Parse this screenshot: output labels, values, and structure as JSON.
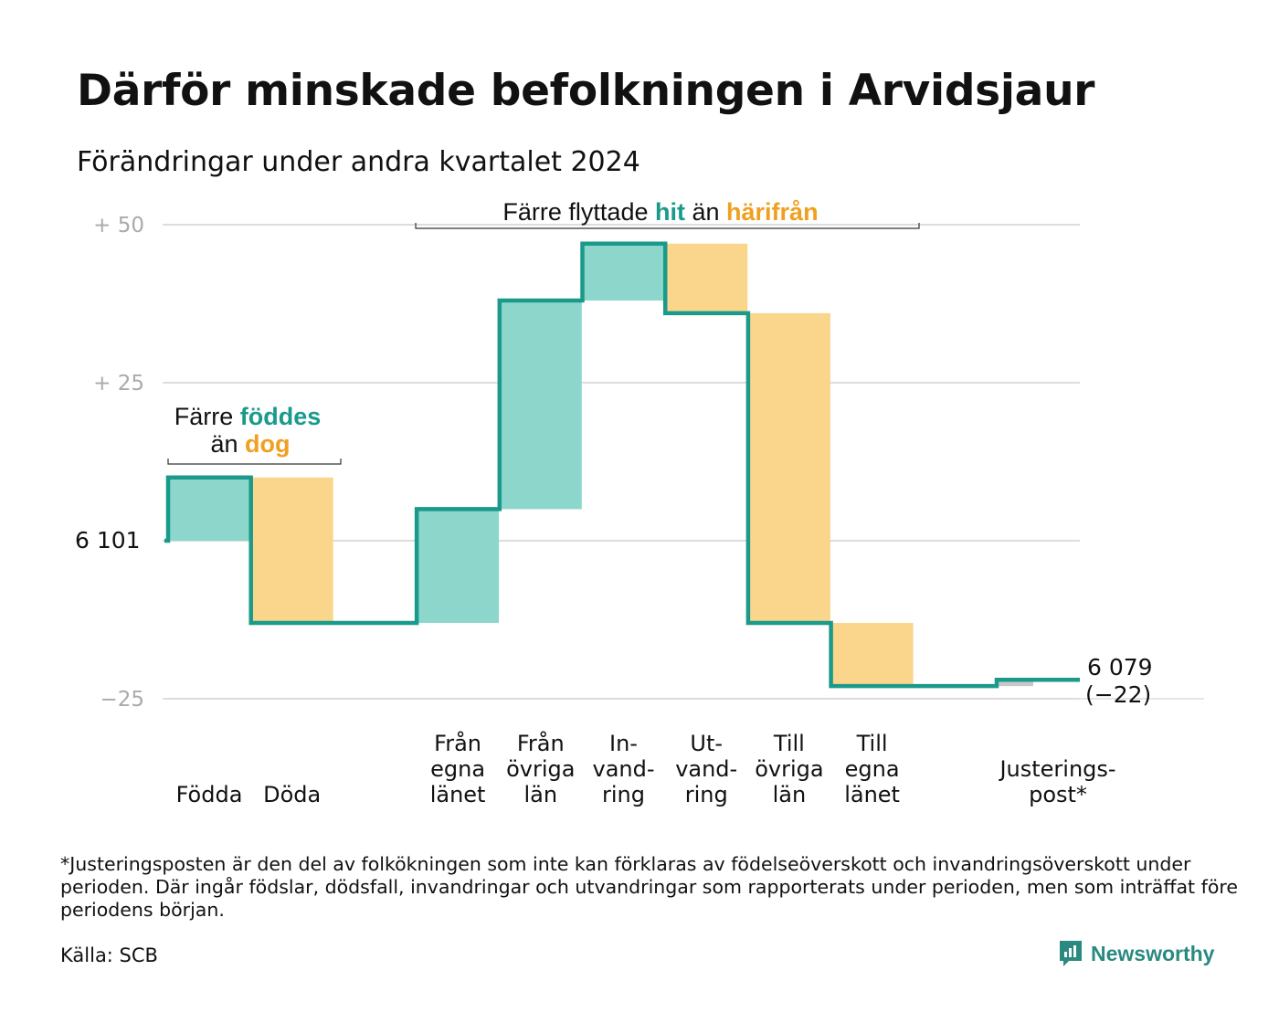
{
  "title": "Därför minskade befolkningen i Arvidsjaur",
  "subtitle": "Förändringar under andra kvartalet 2024",
  "colors": {
    "inflow_fill": "#8dd6cc",
    "outflow_fill": "#fad58c",
    "line": "#1a9a8a",
    "adjust_fill": "#c8c8c8",
    "grid": "#dddddd",
    "hit_text": "#1a9a8a",
    "away_text": "#f0a020"
  },
  "annotations": {
    "births": {
      "line1_a": "Färre ",
      "line1_b": "föddes",
      "line2_a": "än ",
      "line2_b": "dog"
    },
    "moves": {
      "a": "Färre flyttade ",
      "b": "hit",
      "c": " än ",
      "d": "härifrån"
    }
  },
  "chart_data": {
    "type": "waterfall",
    "title": "Därför minskade befolkningen i Arvidsjaur",
    "subtitle": "Förändringar under andra kvartalet 2024",
    "start_value": 6101,
    "start_label": "6  101",
    "end_label": "6 079",
    "end_change_label": "(−22)",
    "y_ticks": [
      {
        "value": 50,
        "label": "+  50"
      },
      {
        "value": 25,
        "label": "+  25"
      },
      {
        "value": 0,
        "label": ""
      },
      {
        "value": -25,
        "label": "−25"
      }
    ],
    "ylim": [
      -25,
      50
    ],
    "steps": [
      {
        "label": [
          "",
          "",
          "Födda"
        ],
        "value": 10,
        "kind": "in"
      },
      {
        "label": [
          "",
          "",
          "Döda"
        ],
        "value": -23,
        "kind": "out"
      },
      {
        "label": [
          "",
          "",
          ""
        ],
        "value": 0,
        "kind": "gap"
      },
      {
        "label": [
          "Från",
          "egna",
          "länet"
        ],
        "value": 18,
        "kind": "in"
      },
      {
        "label": [
          "Från",
          "övriga",
          "län"
        ],
        "value": 33,
        "kind": "in"
      },
      {
        "label": [
          "In-",
          "vand-",
          "ring"
        ],
        "value": 9,
        "kind": "in"
      },
      {
        "label": [
          "Ut-",
          "vand-",
          "ring"
        ],
        "value": -11,
        "kind": "out"
      },
      {
        "label": [
          "Till",
          "övriga",
          "län"
        ],
        "value": -49,
        "kind": "out"
      },
      {
        "label": [
          "Till",
          "egna",
          "länet"
        ],
        "value": -10,
        "kind": "out"
      },
      {
        "label": [
          "",
          "",
          ""
        ],
        "value": 0,
        "kind": "gap"
      },
      {
        "label": [
          "",
          "Justerings-",
          "post*"
        ],
        "value": 1,
        "kind": "adjust"
      }
    ]
  },
  "footnote": "*Justeringsposten är den del av folkökningen som inte kan förklaras av födelseöverskott och invandringsöverskott under perioden. Där ingår födslar, dödsfall, invandringar och utvandringar som rapporterats under perioden, men som inträffat före periodens början.",
  "source": "Källa: SCB",
  "brand": {
    "name": "Newsworthy",
    "icon": "chart-speech-bubble-icon"
  }
}
